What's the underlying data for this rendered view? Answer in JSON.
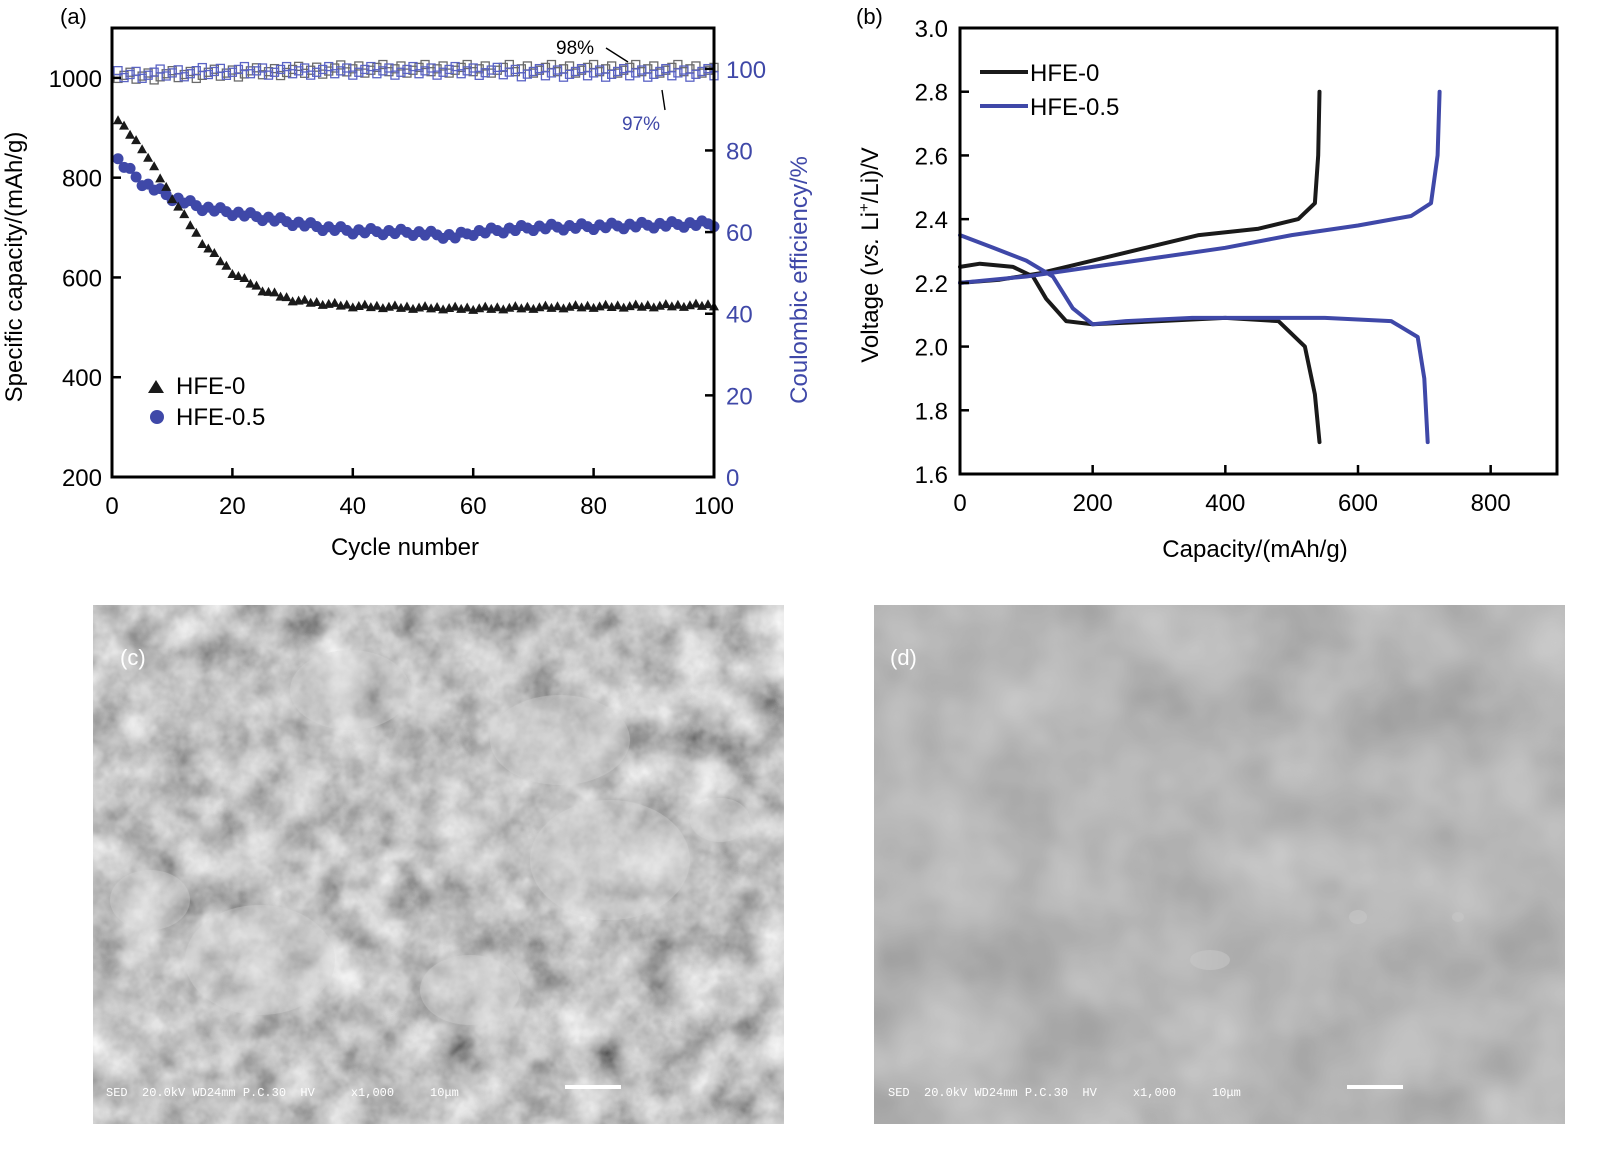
{
  "colors": {
    "axis": "#000000",
    "hfe0": "#1a1a1a",
    "hfe05": "#3f48a8",
    "ce_hfe0": "#6a6a6a",
    "ce_hfe05": "#5a63c4",
    "sem_bg": "#7b7b7b"
  },
  "chart_data": [
    {
      "panel": "(a)",
      "type": "scatter",
      "xlabel": "Cycle number",
      "ylabel": "Specific capacity/(mAh/g)",
      "y2label": "Coulombic efficiency/%",
      "xlim": [
        0,
        100
      ],
      "ylim": [
        200,
        1100
      ],
      "y2lim": [
        0,
        110
      ],
      "xticks": [
        0,
        20,
        40,
        60,
        80,
        100
      ],
      "yticks": [
        200,
        400,
        600,
        800,
        1000
      ],
      "y2ticks": [
        0,
        20,
        40,
        60,
        80,
        100
      ],
      "legend": [
        "HFE-0",
        "HFE-0.5"
      ],
      "legend_position": "bottom-left",
      "annotations": [
        "98%",
        "97%"
      ],
      "series": [
        {
          "name": "HFE-0",
          "marker": "triangle",
          "axis": "left",
          "points": [
            [
              1,
              915
            ],
            [
              5,
              860
            ],
            [
              10,
              760
            ],
            [
              15,
              670
            ],
            [
              20,
              610
            ],
            [
              25,
              575
            ],
            [
              30,
              555
            ],
            [
              35,
              548
            ],
            [
              40,
              543
            ],
            [
              50,
              540
            ],
            [
              60,
              538
            ],
            [
              70,
              540
            ],
            [
              80,
              542
            ],
            [
              90,
              543
            ],
            [
              100,
              545
            ]
          ]
        },
        {
          "name": "HFE-0.5",
          "marker": "circle",
          "axis": "left",
          "points": [
            [
              1,
              835
            ],
            [
              5,
              790
            ],
            [
              10,
              760
            ],
            [
              15,
              740
            ],
            [
              20,
              730
            ],
            [
              25,
              720
            ],
            [
              30,
              710
            ],
            [
              35,
              700
            ],
            [
              40,
              693
            ],
            [
              50,
              690
            ],
            [
              57,
              682
            ],
            [
              60,
              690
            ],
            [
              70,
              700
            ],
            [
              80,
              702
            ],
            [
              90,
              705
            ],
            [
              100,
              708
            ]
          ]
        },
        {
          "name": "HFE-0 CE",
          "marker": "square-open",
          "axis": "right",
          "points": [
            [
              1,
              98
            ],
            [
              10,
              98.5
            ],
            [
              20,
              99
            ],
            [
              30,
              99.5
            ],
            [
              40,
              100
            ],
            [
              50,
              100
            ],
            [
              60,
              100
            ],
            [
              70,
              100
            ],
            [
              80,
              100
            ],
            [
              90,
              100
            ],
            [
              100,
              100
            ]
          ]
        },
        {
          "name": "HFE-0.5 CE",
          "marker": "square-open",
          "axis": "right",
          "points": [
            [
              1,
              98.5
            ],
            [
              10,
              99
            ],
            [
              20,
              99.5
            ],
            [
              30,
              99.5
            ],
            [
              40,
              99.5
            ],
            [
              50,
              99.5
            ],
            [
              60,
              99.5
            ],
            [
              70,
              99
            ],
            [
              80,
              99
            ],
            [
              90,
              99
            ],
            [
              100,
              99
            ]
          ]
        }
      ]
    },
    {
      "panel": "(b)",
      "type": "line",
      "xlabel": "Capacity/(mAh/g)",
      "ylabel_parts": [
        "Voltage (",
        "vs.",
        " Li",
        "+",
        "/Li)/V"
      ],
      "xlim": [
        0,
        900
      ],
      "ylim": [
        1.6,
        3.0
      ],
      "xticks": [
        0,
        200,
        400,
        600,
        800
      ],
      "yticks": [
        1.6,
        1.8,
        2.0,
        2.2,
        2.4,
        2.6,
        2.8,
        3.0
      ],
      "legend": [
        "HFE-0",
        "HFE-0.5"
      ],
      "legend_position": "top-left",
      "series": [
        {
          "name": "HFE-0 discharge",
          "legend": "HFE-0",
          "points": [
            [
              0,
              2.25
            ],
            [
              30,
              2.26
            ],
            [
              80,
              2.25
            ],
            [
              110,
              2.22
            ],
            [
              130,
              2.15
            ],
            [
              160,
              2.08
            ],
            [
              200,
              2.07
            ],
            [
              300,
              2.08
            ],
            [
              400,
              2.09
            ],
            [
              480,
              2.08
            ],
            [
              520,
              2.0
            ],
            [
              535,
              1.85
            ],
            [
              542,
              1.7
            ]
          ]
        },
        {
          "name": "HFE-0 charge",
          "legend": "HFE-0",
          "points": [
            [
              0,
              2.2
            ],
            [
              60,
              2.21
            ],
            [
              120,
              2.23
            ],
            [
              200,
              2.27
            ],
            [
              280,
              2.31
            ],
            [
              360,
              2.35
            ],
            [
              450,
              2.37
            ],
            [
              510,
              2.4
            ],
            [
              535,
              2.45
            ],
            [
              540,
              2.6
            ],
            [
              542,
              2.8
            ]
          ]
        },
        {
          "name": "HFE-0.5 discharge",
          "legend": "HFE-0.5",
          "points": [
            [
              0,
              2.35
            ],
            [
              50,
              2.31
            ],
            [
              100,
              2.27
            ],
            [
              140,
              2.22
            ],
            [
              170,
              2.12
            ],
            [
              200,
              2.07
            ],
            [
              250,
              2.08
            ],
            [
              350,
              2.09
            ],
            [
              450,
              2.09
            ],
            [
              550,
              2.09
            ],
            [
              650,
              2.08
            ],
            [
              690,
              2.03
            ],
            [
              700,
              1.9
            ],
            [
              705,
              1.7
            ]
          ]
        },
        {
          "name": "HFE-0.5 charge",
          "legend": "HFE-0.5",
          "points": [
            [
              0,
              2.2
            ],
            [
              100,
              2.22
            ],
            [
              200,
              2.25
            ],
            [
              300,
              2.28
            ],
            [
              400,
              2.31
            ],
            [
              500,
              2.35
            ],
            [
              600,
              2.38
            ],
            [
              680,
              2.41
            ],
            [
              710,
              2.45
            ],
            [
              720,
              2.6
            ],
            [
              723,
              2.8
            ]
          ]
        }
      ]
    }
  ],
  "micrographs": [
    {
      "panel": "(c)",
      "caption": "SED  20.0kV WD24mm P.C.30  HV     x1,000     10μm"
    },
    {
      "panel": "(d)",
      "caption": "SED  20.0kV WD24mm P.C.30  HV     x1,000     10μm"
    }
  ]
}
